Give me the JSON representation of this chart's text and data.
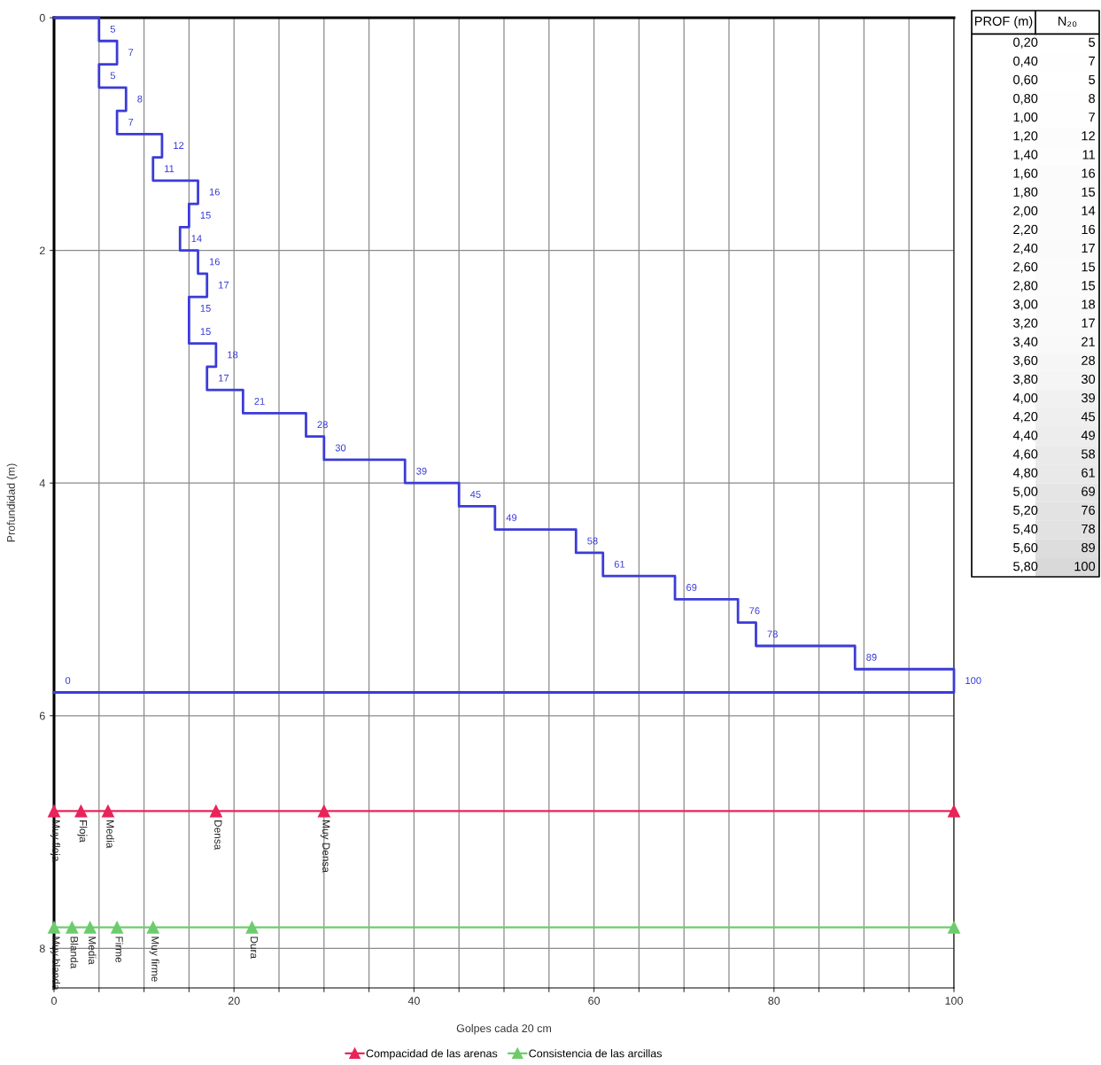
{
  "chart_data": [
    {
      "type": "line",
      "orientation": "horizontal",
      "xlabel": "Golpes cada 20 cm",
      "ylabel": "Profundidad (m)",
      "xlim": [
        0,
        100
      ],
      "ylim": [
        8.34,
        0
      ],
      "xticks": [
        0,
        {
          "value": 5,
          "label": null
        },
        {
          "value": 10,
          "label": null
        },
        {
          "value": 15,
          "label": null
        },
        20,
        {
          "value": 25,
          "label": null
        },
        {
          "value": 30,
          "label": null
        },
        {
          "value": 35,
          "label": null
        },
        40,
        {
          "value": 45,
          "label": null
        },
        {
          "value": 50,
          "label": null
        },
        {
          "value": 55,
          "label": null
        },
        60,
        {
          "value": 65,
          "label": null
        },
        {
          "value": 70,
          "label": null
        },
        {
          "value": 75,
          "label": null
        },
        80,
        {
          "value": 85,
          "label": null
        },
        {
          "value": 90,
          "label": null
        },
        {
          "value": 95,
          "label": null
        },
        100
      ],
      "yticks": [
        0,
        2,
        4,
        6,
        8
      ],
      "grid": true,
      "legend": "bottom",
      "annotations": [
        {
          "text": "Muy floja",
          "x": 0,
          "y": 6.82
        },
        {
          "text": "Floja",
          "x": 3,
          "y": 6.82
        },
        {
          "text": "Media",
          "x": 6,
          "y": 6.82
        },
        {
          "text": "Densa",
          "x": 18,
          "y": 6.82
        },
        {
          "text": "Muy Densa",
          "x": 30,
          "y": 6.82
        },
        {
          "text": "Muy blanda",
          "x": 0,
          "y": 7.82
        },
        {
          "text": "Blanda",
          "x": 2,
          "y": 7.82
        },
        {
          "text": "Media",
          "x": 4,
          "y": 7.82
        },
        {
          "text": "Firme",
          "x": 7,
          "y": 7.82
        },
        {
          "text": "Muy firme",
          "x": 11,
          "y": 7.82
        },
        {
          "text": "Dura",
          "x": 22,
          "y": 7.82
        }
      ],
      "series": [
        {
          "type": "step",
          "color": "#3b3bd8",
          "marker": "none",
          "x": [
            0,
            0.2,
            0.4,
            0.6,
            0.8,
            1.0,
            1.2,
            1.4,
            1.6,
            1.8,
            2.0,
            2.2,
            2.4,
            2.6,
            2.8,
            3.0,
            3.2,
            3.4,
            3.6,
            3.8,
            4.0,
            4.2,
            4.4,
            4.6,
            4.8,
            5.0,
            5.2,
            5.4,
            5.6,
            5.8,
            5.8
          ],
          "values": [
            0,
            5,
            7,
            5,
            8,
            7,
            12,
            11,
            16,
            15,
            14,
            16,
            17,
            15,
            15,
            18,
            17,
            21,
            28,
            30,
            39,
            45,
            49,
            58,
            61,
            69,
            76,
            78,
            89,
            100,
            0
          ],
          "value_labels": [
            null,
            "5",
            "7",
            "5",
            "8",
            "7",
            "12",
            "11",
            "16",
            "15",
            "14",
            "16",
            "17",
            "15",
            "15",
            "18",
            "17",
            "21",
            "28",
            "30",
            "39",
            "45",
            "49",
            "58",
            "61",
            "69",
            "76",
            "78",
            "89",
            "100",
            "0"
          ]
        },
        {
          "type": "line",
          "name": "Compacidad de las arenas",
          "color": "#e8245a",
          "marker": "triangle",
          "x": [
            6.82,
            6.82,
            6.82,
            6.82,
            6.82,
            6.82
          ],
          "values": [
            0,
            3,
            6,
            18,
            30,
            100
          ]
        },
        {
          "type": "line",
          "name": "Consistencia de las arcillas",
          "color": "#6ccc6c",
          "marker": "triangle",
          "x": [
            7.82,
            7.82,
            7.82,
            7.82,
            7.82,
            7.82,
            7.82
          ],
          "values": [
            0,
            2,
            4,
            7,
            11,
            22,
            100
          ]
        }
      ]
    },
    {
      "type": "heatmap",
      "annotations": [
        "PROF (m)"
      ],
      "categories": [
        "N₂₀"
      ],
      "y_categories": [
        "0,20",
        "0,40",
        "0,60",
        "0,80",
        "1,00",
        "1,20",
        "1,40",
        "1,60",
        "1,80",
        "2,00",
        "2,20",
        "2,40",
        "2,60",
        "2,80",
        "3,00",
        "3,20",
        "3,40",
        "3,60",
        "3,80",
        "4,00",
        "4,20",
        "4,40",
        "4,60",
        "4,80",
        "5,00",
        "5,20",
        "5,40",
        "5,60",
        "5,80"
      ],
      "cell_labels": [
        [
          "5"
        ],
        [
          "7"
        ],
        [
          "5"
        ],
        [
          "8"
        ],
        [
          "7"
        ],
        [
          "12"
        ],
        [
          "11"
        ],
        [
          "16"
        ],
        [
          "15"
        ],
        [
          "14"
        ],
        [
          "16"
        ],
        [
          "17"
        ],
        [
          "15"
        ],
        [
          "15"
        ],
        [
          "18"
        ],
        [
          "17"
        ],
        [
          "21"
        ],
        [
          "28"
        ],
        [
          "30"
        ],
        [
          "39"
        ],
        [
          "45"
        ],
        [
          "49"
        ],
        [
          "58"
        ],
        [
          "61"
        ],
        [
          "69"
        ],
        [
          "76"
        ],
        [
          "78"
        ],
        [
          "89"
        ],
        [
          "100"
        ]
      ],
      "cells": [
        [
          5
        ],
        [
          7
        ],
        [
          5
        ],
        [
          8
        ],
        [
          7
        ],
        [
          12
        ],
        [
          11
        ],
        [
          16
        ],
        [
          15
        ],
        [
          14
        ],
        [
          16
        ],
        [
          17
        ],
        [
          15
        ],
        [
          15
        ],
        [
          18
        ],
        [
          17
        ],
        [
          21
        ],
        [
          28
        ],
        [
          30
        ],
        [
          39
        ],
        [
          45
        ],
        [
          49
        ],
        [
          58
        ],
        [
          61
        ],
        [
          69
        ],
        [
          76
        ],
        [
          78
        ],
        [
          89
        ],
        [
          100
        ]
      ]
    }
  ]
}
